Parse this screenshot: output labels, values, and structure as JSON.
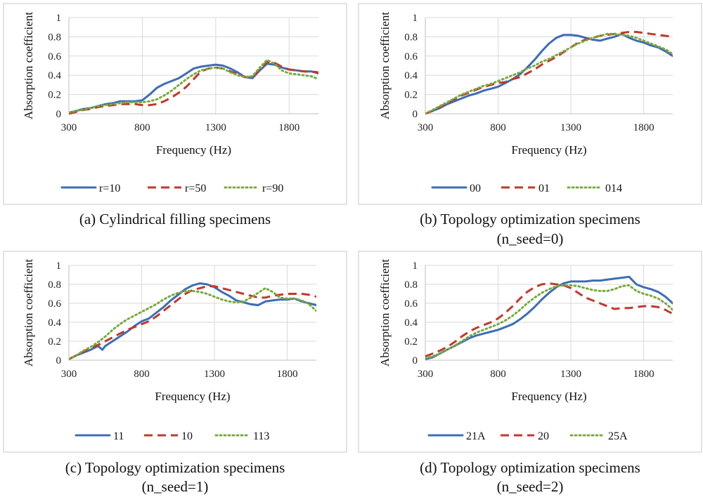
{
  "chart_data": [
    {
      "id": "a",
      "type": "line",
      "xlabel": "Frequency (Hz)",
      "ylabel": "Absorption coefficient",
      "xlim": [
        300,
        2000
      ],
      "ylim": [
        0,
        1
      ],
      "xticks": [
        300,
        800,
        1300,
        1800
      ],
      "yticks": [
        0,
        0.2,
        0.4,
        0.6,
        0.8,
        1
      ],
      "ytick_labels": [
        "0",
        "0.2",
        "0.4",
        "0.6",
        "0.8",
        "1"
      ],
      "caption": [
        "(a)  Cylindrical filling specimens"
      ],
      "series": [
        {
          "name": "r=10",
          "color": "#3d6db5",
          "style": "solid",
          "x": [
            300,
            350,
            400,
            450,
            500,
            550,
            600,
            650,
            700,
            750,
            800,
            850,
            900,
            950,
            1000,
            1050,
            1100,
            1150,
            1200,
            1250,
            1300,
            1350,
            1400,
            1450,
            1500,
            1550,
            1600,
            1650,
            1700,
            1750,
            1800,
            1850,
            1900,
            1950,
            2000
          ],
          "y": [
            0.01,
            0.03,
            0.05,
            0.06,
            0.08,
            0.1,
            0.11,
            0.13,
            0.13,
            0.13,
            0.14,
            0.2,
            0.27,
            0.31,
            0.34,
            0.37,
            0.42,
            0.47,
            0.49,
            0.5,
            0.51,
            0.5,
            0.47,
            0.43,
            0.38,
            0.37,
            0.45,
            0.52,
            0.51,
            0.48,
            0.46,
            0.45,
            0.44,
            0.44,
            0.42
          ]
        },
        {
          "name": "r=50",
          "color": "#c0392b",
          "style": "dashed",
          "x": [
            300,
            350,
            400,
            450,
            500,
            550,
            600,
            650,
            700,
            750,
            800,
            850,
            900,
            950,
            1000,
            1050,
            1100,
            1150,
            1200,
            1250,
            1300,
            1350,
            1400,
            1450,
            1500,
            1550,
            1600,
            1650,
            1700,
            1750,
            1800,
            1850,
            1900,
            1950,
            2000
          ],
          "y": [
            0.0,
            0.02,
            0.04,
            0.05,
            0.07,
            0.08,
            0.09,
            0.1,
            0.1,
            0.1,
            0.09,
            0.09,
            0.1,
            0.13,
            0.17,
            0.22,
            0.28,
            0.36,
            0.44,
            0.47,
            0.48,
            0.47,
            0.44,
            0.41,
            0.38,
            0.38,
            0.46,
            0.54,
            0.53,
            0.49,
            0.46,
            0.45,
            0.44,
            0.44,
            0.43
          ]
        },
        {
          "name": "r=90",
          "color": "#7aaa3c",
          "style": "dotted",
          "x": [
            300,
            350,
            400,
            450,
            500,
            550,
            600,
            650,
            700,
            750,
            800,
            850,
            900,
            950,
            1000,
            1050,
            1100,
            1150,
            1200,
            1250,
            1300,
            1350,
            1400,
            1450,
            1500,
            1550,
            1600,
            1650,
            1700,
            1750,
            1800,
            1850,
            1900,
            1950,
            2000
          ],
          "y": [
            0.01,
            0.03,
            0.04,
            0.06,
            0.08,
            0.09,
            0.1,
            0.11,
            0.12,
            0.12,
            0.12,
            0.13,
            0.15,
            0.19,
            0.24,
            0.3,
            0.36,
            0.41,
            0.45,
            0.47,
            0.48,
            0.47,
            0.43,
            0.4,
            0.38,
            0.39,
            0.48,
            0.56,
            0.52,
            0.45,
            0.42,
            0.41,
            0.4,
            0.39,
            0.36
          ]
        }
      ]
    },
    {
      "id": "b",
      "type": "line",
      "xlabel": "Frequency (Hz)",
      "ylabel": "Absorption coefficient",
      "xlim": [
        300,
        2000
      ],
      "ylim": [
        0,
        1
      ],
      "xticks": [
        300,
        800,
        1300,
        1800
      ],
      "yticks": [
        0,
        0.2,
        0.4,
        0.6,
        0.8,
        1
      ],
      "ytick_labels": [
        "0",
        "0.2",
        "0.4",
        "0.6",
        "0.8",
        "1"
      ],
      "caption": [
        "(b) Topology optimization specimens",
        "(n_seed=0)"
      ],
      "series": [
        {
          "name": "00",
          "color": "#3d6db5",
          "style": "solid",
          "x": [
            300,
            350,
            400,
            450,
            500,
            550,
            600,
            650,
            700,
            750,
            800,
            850,
            900,
            950,
            1000,
            1050,
            1100,
            1150,
            1200,
            1250,
            1300,
            1350,
            1400,
            1450,
            1500,
            1550,
            1600,
            1650,
            1700,
            1750,
            1800,
            1850,
            1900,
            1950,
            2000
          ],
          "y": [
            0.0,
            0.03,
            0.06,
            0.1,
            0.13,
            0.16,
            0.19,
            0.21,
            0.24,
            0.26,
            0.28,
            0.32,
            0.36,
            0.41,
            0.48,
            0.56,
            0.65,
            0.73,
            0.79,
            0.82,
            0.82,
            0.81,
            0.79,
            0.77,
            0.76,
            0.78,
            0.8,
            0.83,
            0.79,
            0.76,
            0.74,
            0.71,
            0.69,
            0.65,
            0.6
          ]
        },
        {
          "name": "01",
          "color": "#c0392b",
          "style": "dashed",
          "x": [
            300,
            350,
            400,
            450,
            500,
            550,
            600,
            650,
            700,
            750,
            800,
            850,
            900,
            950,
            1000,
            1050,
            1100,
            1150,
            1200,
            1250,
            1300,
            1350,
            1400,
            1450,
            1500,
            1550,
            1600,
            1650,
            1700,
            1750,
            1800,
            1850,
            1900,
            1950,
            2000
          ],
          "y": [
            0.0,
            0.03,
            0.07,
            0.11,
            0.15,
            0.19,
            0.22,
            0.25,
            0.28,
            0.3,
            0.32,
            0.33,
            0.36,
            0.38,
            0.42,
            0.46,
            0.51,
            0.55,
            0.59,
            0.64,
            0.69,
            0.74,
            0.77,
            0.79,
            0.81,
            0.82,
            0.83,
            0.84,
            0.85,
            0.85,
            0.84,
            0.83,
            0.82,
            0.81,
            0.8
          ]
        },
        {
          "name": "014",
          "color": "#7aaa3c",
          "style": "dotted",
          "x": [
            300,
            350,
            400,
            450,
            500,
            550,
            600,
            650,
            700,
            750,
            800,
            850,
            900,
            950,
            1000,
            1050,
            1100,
            1150,
            1200,
            1250,
            1300,
            1350,
            1400,
            1450,
            1500,
            1550,
            1600,
            1650,
            1700,
            1750,
            1800,
            1850,
            1900,
            1950,
            2000
          ],
          "y": [
            0.0,
            0.04,
            0.08,
            0.12,
            0.16,
            0.2,
            0.23,
            0.26,
            0.29,
            0.31,
            0.34,
            0.37,
            0.4,
            0.43,
            0.47,
            0.5,
            0.54,
            0.57,
            0.61,
            0.65,
            0.69,
            0.73,
            0.76,
            0.79,
            0.81,
            0.83,
            0.83,
            0.82,
            0.81,
            0.79,
            0.76,
            0.73,
            0.7,
            0.67,
            0.62
          ]
        }
      ]
    },
    {
      "id": "c",
      "type": "line",
      "xlabel": "Frequency (Hz)",
      "ylabel": "Absorption coefficient",
      "xlim": [
        300,
        2000
      ],
      "ylim": [
        0,
        1
      ],
      "xticks": [
        300,
        800,
        1300,
        1800
      ],
      "yticks": [
        0,
        0.2,
        0.4,
        0.6,
        0.8,
        1
      ],
      "ytick_labels": [
        "0",
        "0.2",
        "0.4",
        "0.6",
        "0.8",
        "1"
      ],
      "caption": [
        "(c) Topology optimization specimens",
        "(n_seed=1)"
      ],
      "series": [
        {
          "name": "11",
          "color": "#3d6db5",
          "style": "solid",
          "x": [
            300,
            350,
            400,
            450,
            500,
            530,
            550,
            600,
            650,
            700,
            750,
            800,
            850,
            900,
            950,
            1000,
            1050,
            1100,
            1150,
            1200,
            1250,
            1300,
            1350,
            1400,
            1450,
            1500,
            1550,
            1600,
            1650,
            1700,
            1750,
            1800,
            1850,
            1900,
            1950,
            2000
          ],
          "y": [
            0.01,
            0.05,
            0.08,
            0.11,
            0.15,
            0.11,
            0.15,
            0.2,
            0.25,
            0.3,
            0.36,
            0.41,
            0.44,
            0.5,
            0.56,
            0.63,
            0.69,
            0.75,
            0.79,
            0.81,
            0.8,
            0.77,
            0.72,
            0.68,
            0.63,
            0.61,
            0.59,
            0.58,
            0.62,
            0.63,
            0.64,
            0.64,
            0.65,
            0.62,
            0.6,
            0.58
          ]
        },
        {
          "name": "10",
          "color": "#c0392b",
          "style": "dashed",
          "x": [
            300,
            350,
            400,
            450,
            500,
            550,
            600,
            650,
            700,
            750,
            800,
            850,
            900,
            950,
            1000,
            1050,
            1100,
            1150,
            1200,
            1250,
            1300,
            1350,
            1400,
            1450,
            1500,
            1550,
            1600,
            1650,
            1700,
            1750,
            1800,
            1850,
            1900,
            1950,
            2000
          ],
          "y": [
            0.01,
            0.05,
            0.09,
            0.13,
            0.16,
            0.2,
            0.24,
            0.28,
            0.32,
            0.35,
            0.38,
            0.41,
            0.46,
            0.52,
            0.58,
            0.64,
            0.7,
            0.74,
            0.76,
            0.78,
            0.78,
            0.76,
            0.74,
            0.72,
            0.7,
            0.68,
            0.66,
            0.66,
            0.68,
            0.69,
            0.7,
            0.7,
            0.7,
            0.69,
            0.67
          ]
        },
        {
          "name": "113",
          "color": "#7aaa3c",
          "style": "dotted",
          "x": [
            300,
            350,
            400,
            450,
            500,
            550,
            600,
            650,
            700,
            750,
            800,
            850,
            900,
            950,
            1000,
            1050,
            1100,
            1150,
            1200,
            1250,
            1300,
            1350,
            1400,
            1450,
            1500,
            1550,
            1600,
            1650,
            1700,
            1750,
            1800,
            1850,
            1900,
            1950,
            2000
          ],
          "y": [
            0.01,
            0.05,
            0.1,
            0.14,
            0.19,
            0.25,
            0.32,
            0.38,
            0.43,
            0.47,
            0.51,
            0.55,
            0.59,
            0.64,
            0.68,
            0.71,
            0.73,
            0.73,
            0.72,
            0.7,
            0.67,
            0.64,
            0.62,
            0.61,
            0.62,
            0.66,
            0.71,
            0.76,
            0.72,
            0.66,
            0.65,
            0.65,
            0.63,
            0.59,
            0.52
          ]
        }
      ]
    },
    {
      "id": "d",
      "type": "line",
      "xlabel": "Frequency (Hz)",
      "ylabel": "Absorption coefficient",
      "xlim": [
        300,
        2000
      ],
      "ylim": [
        0,
        1
      ],
      "xticks": [
        300,
        800,
        1300,
        1800
      ],
      "yticks": [
        0,
        0.2,
        0.4,
        0.6,
        0.8,
        1
      ],
      "ytick_labels": [
        "0",
        "0.2",
        "0.4",
        "0.6",
        "0.8",
        "1"
      ],
      "caption": [
        "(d) Topology optimization specimens",
        "(n_seed=2)"
      ],
      "series": [
        {
          "name": "21A",
          "color": "#3d6db5",
          "style": "solid",
          "x": [
            300,
            350,
            400,
            450,
            500,
            550,
            600,
            650,
            700,
            750,
            800,
            850,
            900,
            950,
            1000,
            1050,
            1100,
            1150,
            1200,
            1250,
            1300,
            1350,
            1400,
            1450,
            1500,
            1550,
            1600,
            1650,
            1700,
            1750,
            1800,
            1850,
            1900,
            1950,
            2000
          ],
          "y": [
            0.01,
            0.03,
            0.07,
            0.11,
            0.15,
            0.19,
            0.23,
            0.26,
            0.28,
            0.3,
            0.32,
            0.35,
            0.38,
            0.43,
            0.49,
            0.56,
            0.64,
            0.71,
            0.77,
            0.81,
            0.83,
            0.83,
            0.83,
            0.84,
            0.84,
            0.85,
            0.86,
            0.87,
            0.88,
            0.8,
            0.77,
            0.75,
            0.72,
            0.67,
            0.6
          ]
        },
        {
          "name": "20",
          "color": "#c0392b",
          "style": "dashed",
          "x": [
            300,
            350,
            400,
            450,
            500,
            550,
            600,
            650,
            700,
            750,
            800,
            850,
            900,
            950,
            1000,
            1050,
            1100,
            1150,
            1200,
            1250,
            1300,
            1350,
            1400,
            1450,
            1500,
            1550,
            1600,
            1650,
            1700,
            1750,
            1800,
            1850,
            1900,
            1950,
            2000
          ],
          "y": [
            0.04,
            0.07,
            0.1,
            0.14,
            0.19,
            0.25,
            0.3,
            0.34,
            0.37,
            0.4,
            0.44,
            0.5,
            0.57,
            0.65,
            0.72,
            0.77,
            0.8,
            0.81,
            0.8,
            0.79,
            0.76,
            0.71,
            0.66,
            0.63,
            0.6,
            0.57,
            0.54,
            0.55,
            0.55,
            0.56,
            0.57,
            0.57,
            0.56,
            0.53,
            0.49
          ]
        },
        {
          "name": "25A",
          "color": "#7aaa3c",
          "style": "dotted",
          "x": [
            300,
            350,
            400,
            450,
            500,
            550,
            600,
            650,
            700,
            750,
            800,
            850,
            900,
            950,
            1000,
            1050,
            1100,
            1150,
            1200,
            1250,
            1300,
            1350,
            1400,
            1450,
            1500,
            1550,
            1600,
            1650,
            1700,
            1750,
            1800,
            1850,
            1900,
            1950,
            2000
          ],
          "y": [
            0.02,
            0.04,
            0.07,
            0.11,
            0.15,
            0.2,
            0.25,
            0.29,
            0.32,
            0.35,
            0.38,
            0.42,
            0.47,
            0.53,
            0.6,
            0.66,
            0.71,
            0.75,
            0.78,
            0.79,
            0.79,
            0.78,
            0.76,
            0.74,
            0.73,
            0.73,
            0.75,
            0.78,
            0.79,
            0.73,
            0.7,
            0.68,
            0.65,
            0.6,
            0.53
          ]
        }
      ]
    }
  ]
}
